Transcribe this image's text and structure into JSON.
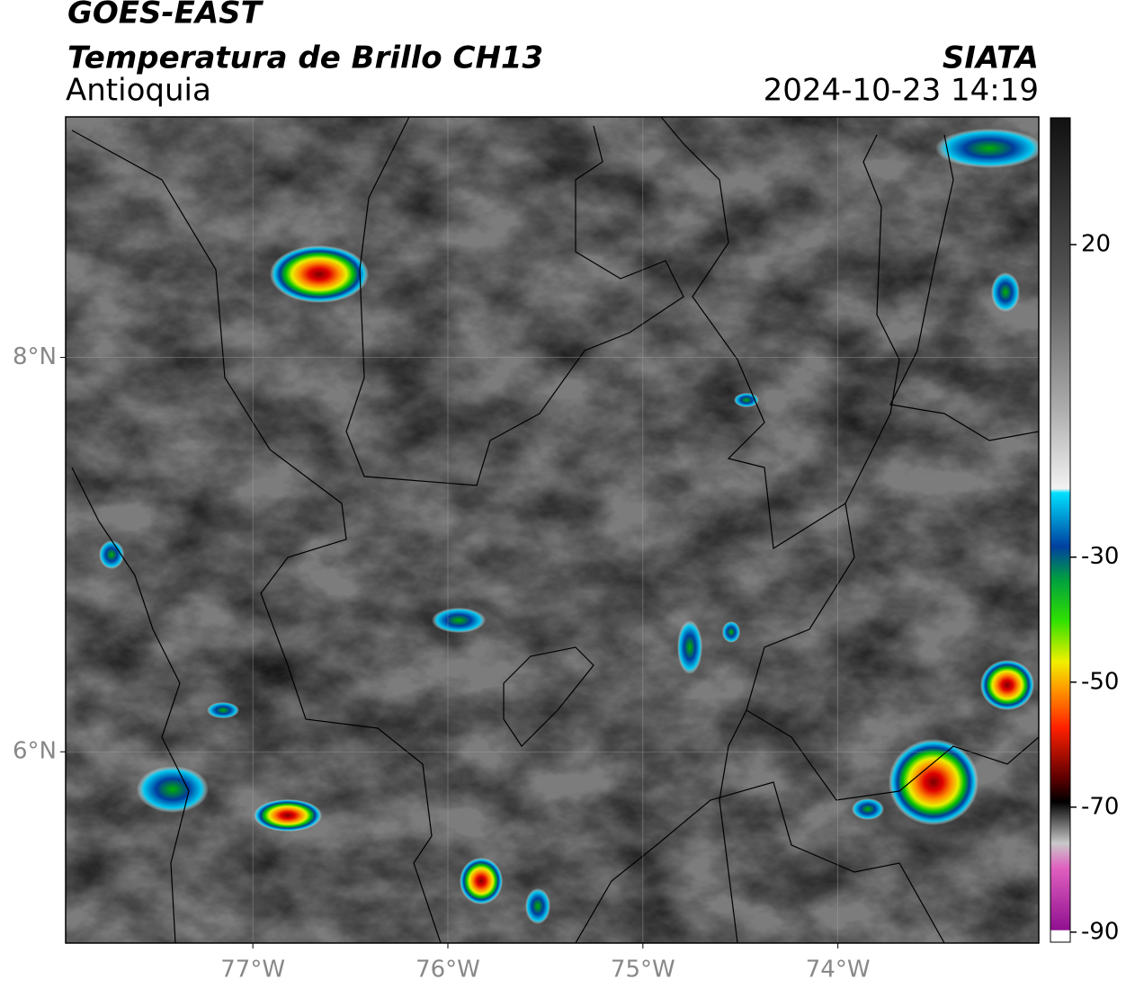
{
  "header": {
    "title": "GOES-EAST",
    "subtitle": "Temperatura de Brillo CH13",
    "region": "Antioquia",
    "source": "SIATA",
    "datetime": "2024-10-23 14:19"
  },
  "map": {
    "xlim": [
      -77.96,
      -72.97
    ],
    "ylim": [
      5.03,
      9.22
    ],
    "xticks": [
      {
        "value": -77,
        "label": "77°W"
      },
      {
        "value": -76,
        "label": "76°W"
      },
      {
        "value": -75,
        "label": "75°W"
      },
      {
        "value": -74,
        "label": "74°W"
      }
    ],
    "yticks": [
      {
        "value": 8,
        "label": "8°N"
      },
      {
        "value": 6,
        "label": "6°N"
      }
    ]
  },
  "colorbar": {
    "lim": [
      -91.6,
      40.3
    ],
    "ticks": [
      20,
      -30,
      -50,
      -70,
      -90
    ]
  }
}
